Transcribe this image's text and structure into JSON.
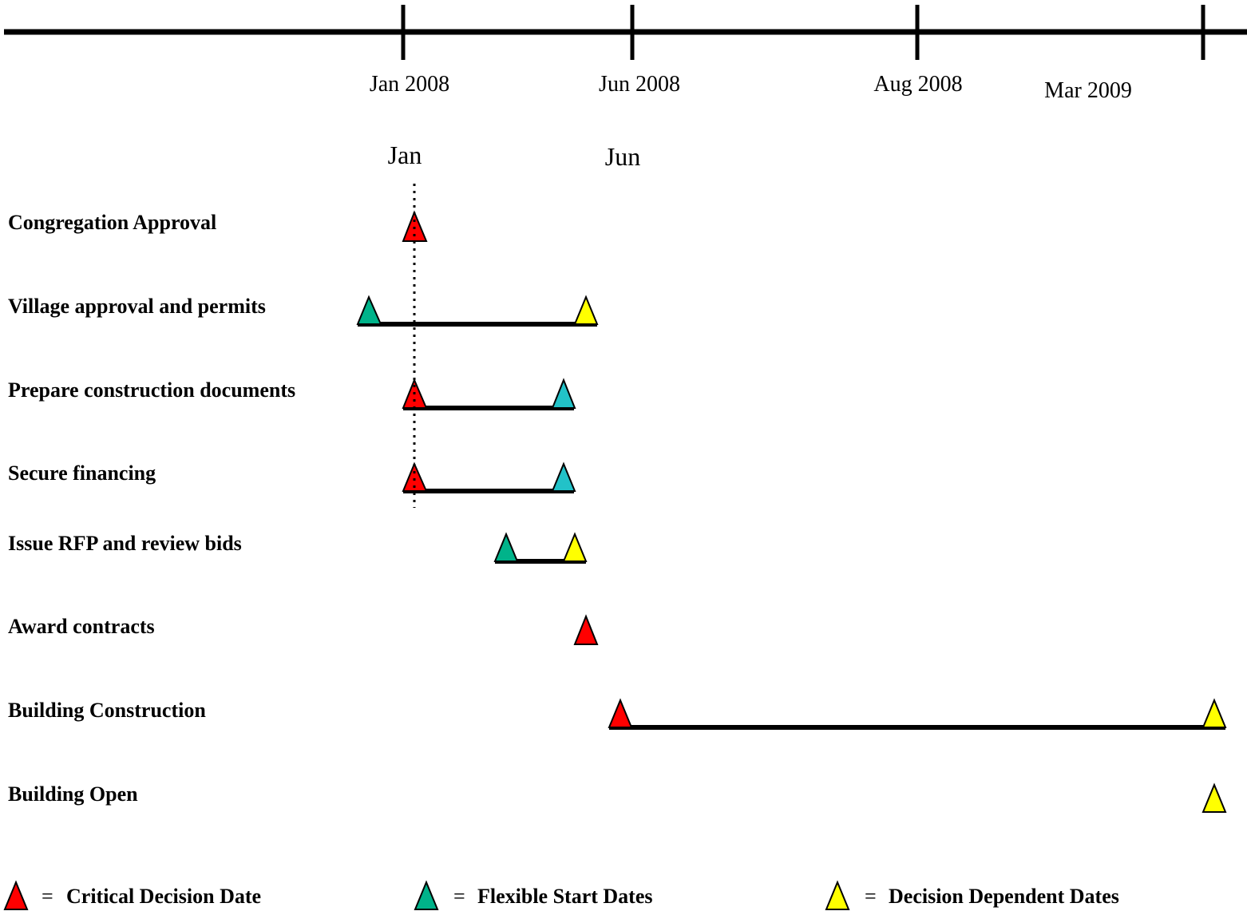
{
  "timeline": {
    "ticks": [
      {
        "id": "jan-2008",
        "label": "Jan 2008"
      },
      {
        "id": "jun-2008",
        "label": "Jun 2008"
      },
      {
        "id": "aug-2008",
        "label": "Aug 2008"
      },
      {
        "id": "mar-2009",
        "label": "Mar 2009"
      }
    ],
    "month_markers": [
      {
        "id": "jan",
        "label": "Jan"
      },
      {
        "id": "jun",
        "label": "Jun"
      }
    ]
  },
  "tasks": [
    {
      "id": "congregation-approval",
      "label": "Congregation Approval",
      "bar": false,
      "markers": [
        {
          "type": "critical"
        }
      ]
    },
    {
      "id": "village-approval",
      "label": "Village approval and permits",
      "bar": true,
      "markers": [
        {
          "type": "flexible"
        },
        {
          "type": "dependent"
        }
      ]
    },
    {
      "id": "prepare-docs",
      "label": "Prepare construction documents",
      "bar": true,
      "markers": [
        {
          "type": "critical"
        },
        {
          "type": "flexible-alt"
        }
      ]
    },
    {
      "id": "secure-financing",
      "label": "Secure financing",
      "bar": true,
      "markers": [
        {
          "type": "critical"
        },
        {
          "type": "flexible-alt"
        }
      ]
    },
    {
      "id": "issue-rfp",
      "label": "Issue RFP and review bids",
      "bar": true,
      "markers": [
        {
          "type": "flexible"
        },
        {
          "type": "dependent"
        }
      ]
    },
    {
      "id": "award-contracts",
      "label": "Award contracts",
      "bar": false,
      "markers": [
        {
          "type": "critical"
        }
      ]
    },
    {
      "id": "building-construction",
      "label": "Building Construction",
      "bar": true,
      "markers": [
        {
          "type": "critical"
        },
        {
          "type": "dependent"
        }
      ]
    },
    {
      "id": "building-open",
      "label": "Building Open",
      "bar": false,
      "markers": [
        {
          "type": "dependent"
        }
      ]
    }
  ],
  "legend": {
    "equals": "=",
    "items": [
      {
        "id": "critical",
        "label": "Critical Decision Date"
      },
      {
        "id": "flexible",
        "label": "Flexible Start Dates"
      },
      {
        "id": "dependent",
        "label": "Decision Dependent Dates"
      }
    ]
  },
  "colors": {
    "critical": "#ff0000",
    "flexible": "#00b38a",
    "flexible-alt": "#22c2c8",
    "dependent": "#ffff00",
    "line": "#000000"
  }
}
